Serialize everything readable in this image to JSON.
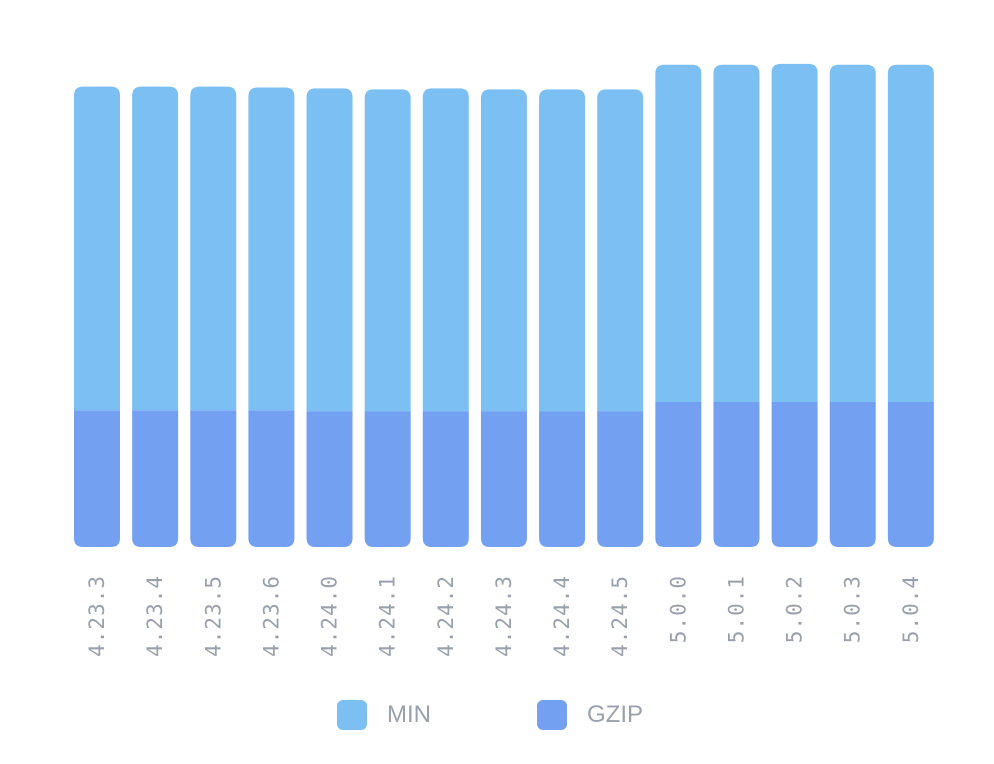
{
  "chart_data": {
    "type": "bar",
    "stacked": true,
    "categories": [
      "4.23.3",
      "4.23.4",
      "4.23.5",
      "4.23.6",
      "4.24.0",
      "4.24.1",
      "4.24.2",
      "4.24.3",
      "4.24.4",
      "4.24.5",
      "5.0.0",
      "5.0.1",
      "5.0.2",
      "5.0.3",
      "5.0.4"
    ],
    "series": [
      {
        "name": "GZIP",
        "color": "#73a0f1",
        "values": [
          30.0,
          30.0,
          30.0,
          30.0,
          29.8,
          29.8,
          29.8,
          29.8,
          29.8,
          29.8,
          31.8,
          31.8,
          31.8,
          31.8,
          31.8
        ]
      },
      {
        "name": "MIN",
        "color": "#7cc0f3",
        "values": [
          71.0,
          71.0,
          71.0,
          70.8,
          70.8,
          70.6,
          70.8,
          70.6,
          70.6,
          70.6,
          74.0,
          74.0,
          74.2,
          74.0,
          74.0
        ]
      }
    ],
    "ylim": [
      0,
      120
    ],
    "grid": false,
    "legend_position": "bottom-center",
    "legend": [
      {
        "label": "MIN",
        "color": "#7cc0f3"
      },
      {
        "label": "GZIP",
        "color": "#73a0f1"
      }
    ]
  }
}
